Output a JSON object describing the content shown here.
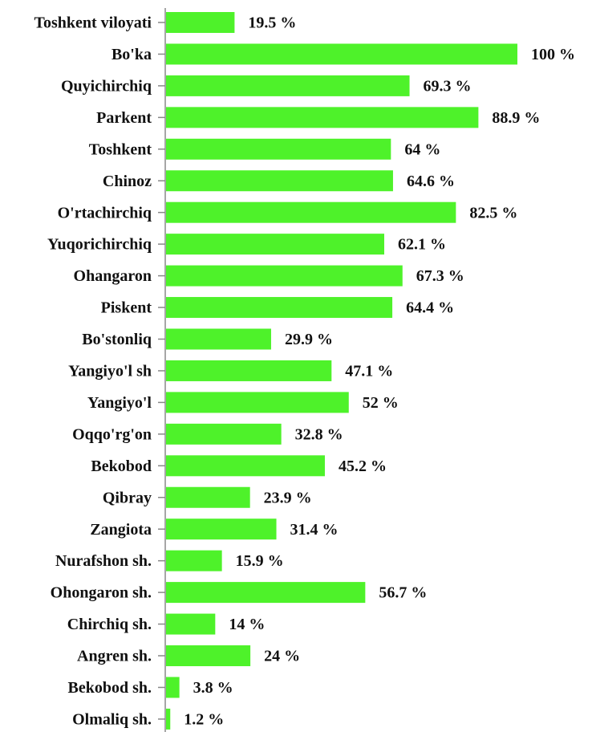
{
  "chart_data": {
    "type": "barh",
    "categories": [
      "Toshkent viloyati",
      "Bo'ka",
      "Quyichirchiq",
      "Parkent",
      "Toshkent",
      "Chinoz",
      "O'rtachirchiq",
      "Yuqorichirchiq",
      "Ohangaron",
      "Piskent",
      "Bo'stonliq",
      "Yangiyo'l sh",
      "Yangiyo'l",
      "Oqqo'rg'on",
      "Bekobod",
      "Qibray",
      "Zangiota",
      "Nurafshon sh.",
      "Ohongaron sh.",
      "Chirchiq sh.",
      "Angren sh.",
      "Bekobod sh.",
      "Olmaliq sh."
    ],
    "values": [
      19.5,
      100,
      69.3,
      88.9,
      64,
      64.6,
      82.5,
      62.1,
      67.3,
      64.4,
      29.9,
      47.1,
      52,
      32.8,
      45.2,
      23.9,
      31.4,
      15.9,
      56.7,
      14,
      24,
      3.8,
      1.2
    ],
    "value_labels": [
      "19.5 %",
      "100 %",
      "69.3 %",
      "88.9 %",
      "64 %",
      "64.6 %",
      "82.5 %",
      "62.1 %",
      "67.3 %",
      "64.4 %",
      "29.9 %",
      "47.1 %",
      "52 %",
      "32.8 %",
      "45.2 %",
      "23.9 %",
      "31.4 %",
      "15.9 %",
      "56.7 %",
      "14 %",
      "24 %",
      "3.8 %",
      "1.2 %"
    ],
    "color": "#4ef22a"
  }
}
